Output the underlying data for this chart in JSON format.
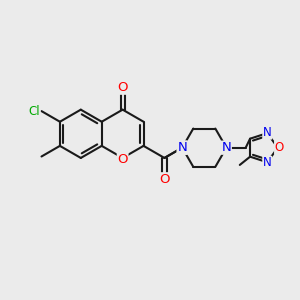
{
  "bg_color": "#ebebeb",
  "bond_color": "#1a1a1a",
  "bond_width": 1.5,
  "atom_colors": {
    "O": "#ff0000",
    "N": "#0000ee",
    "Cl": "#00aa00",
    "C": "#1a1a1a"
  },
  "font_size": 8.5,
  "fig_size": [
    3.0,
    3.0
  ],
  "dpi": 100
}
